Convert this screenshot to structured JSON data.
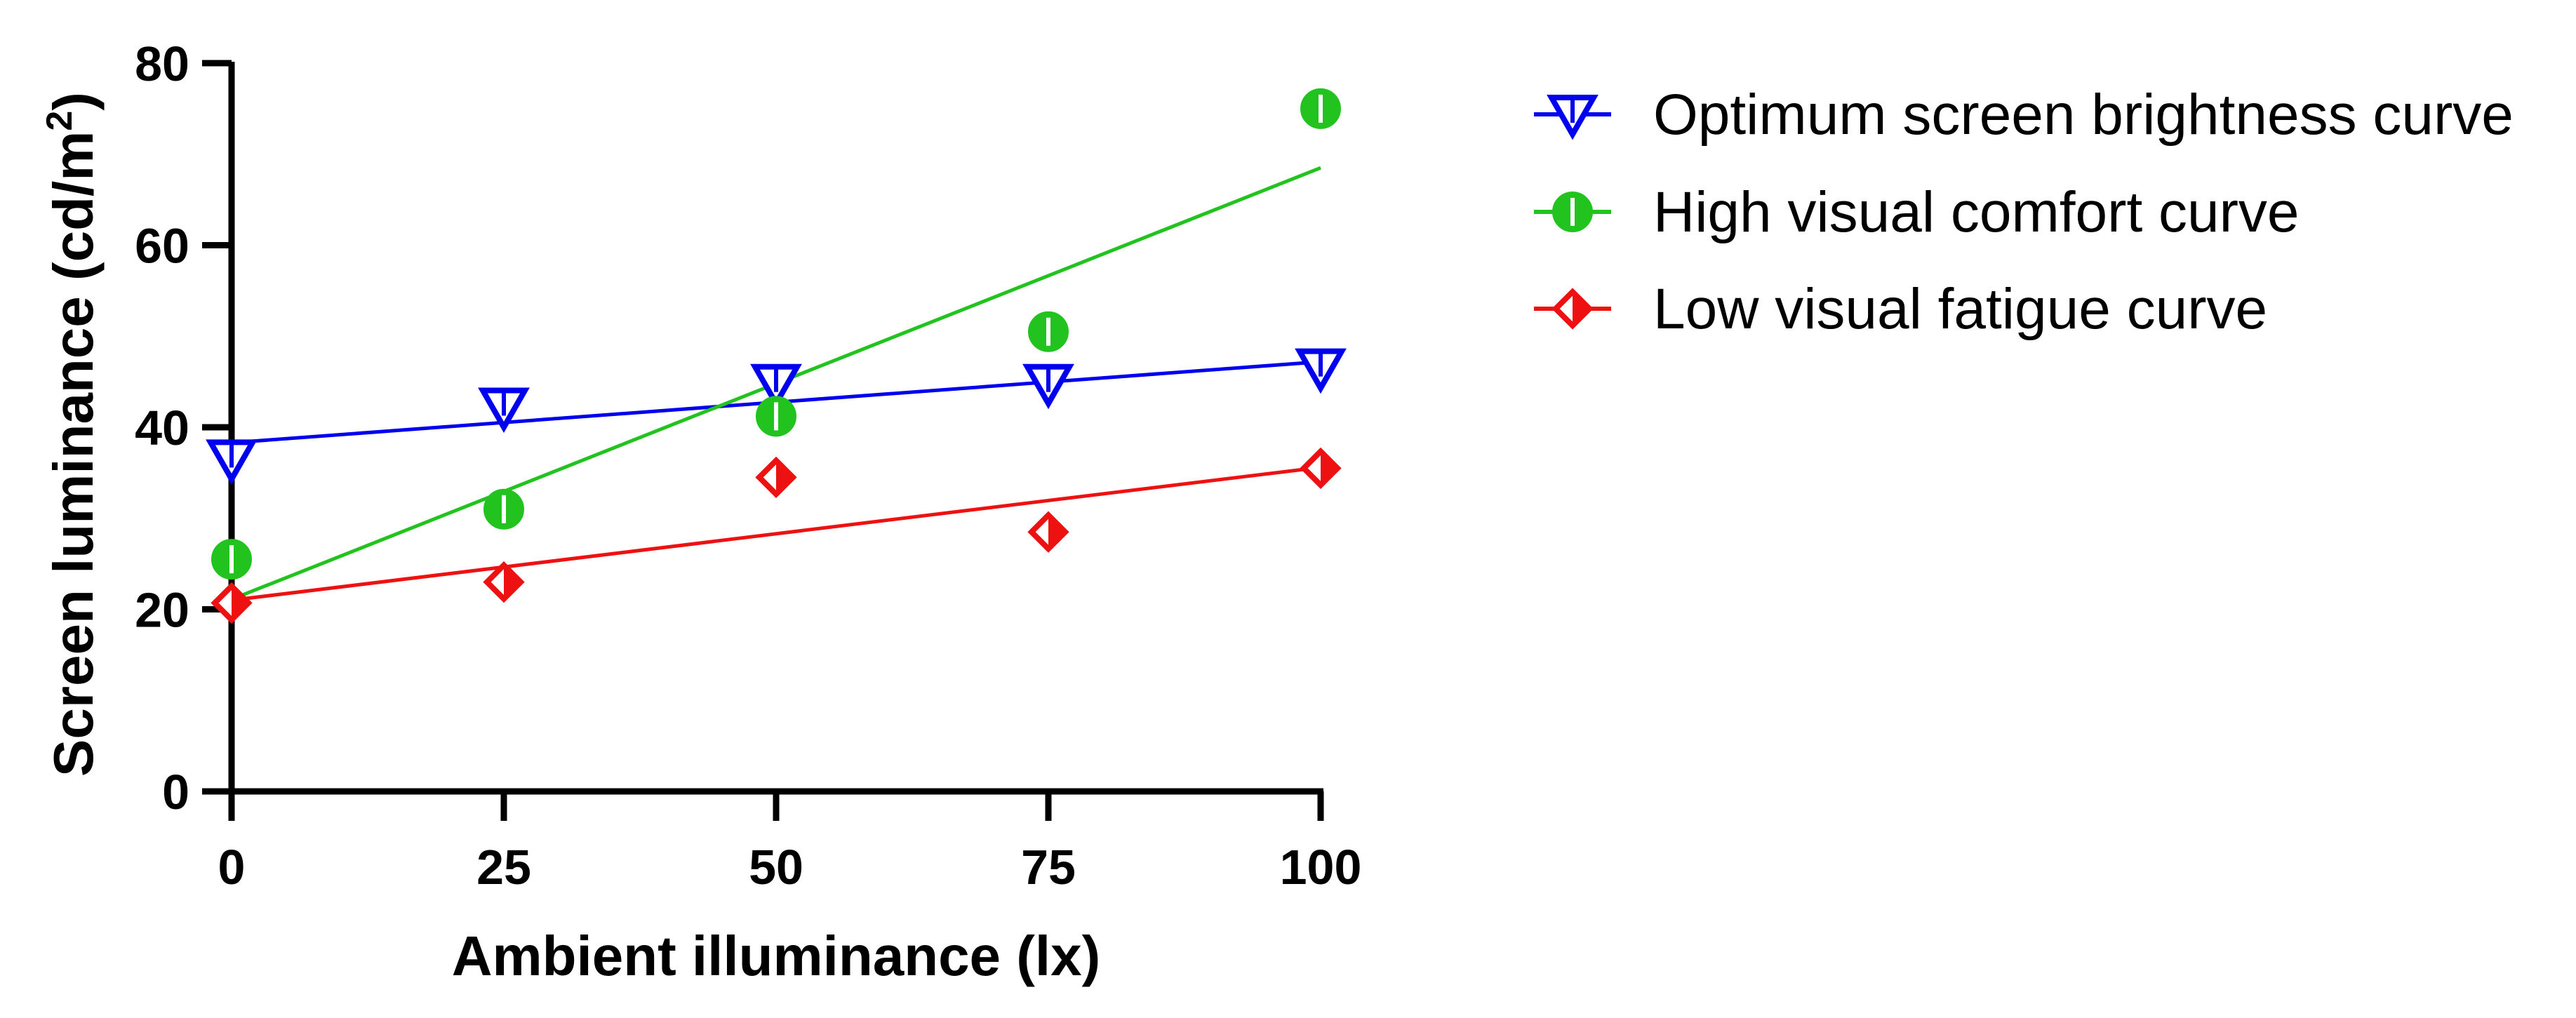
{
  "chart_data": {
    "type": "scatter",
    "title": "",
    "xlabel": "Ambient illuminance (lx)",
    "ylabel": "Screen luminance (cd/m",
    "ylabel_superscript": "2",
    "ylabel_suffix": ")",
    "xlim": [
      0,
      100
    ],
    "ylim": [
      0,
      80
    ],
    "xticks": [
      0,
      25,
      50,
      75,
      100
    ],
    "yticks": [
      0,
      20,
      40,
      60,
      80
    ],
    "grid": false,
    "legend_position": "right",
    "series": [
      {
        "name": "Optimum screen brightness curve",
        "color": "#0000ee",
        "marker": "triangle-down",
        "x": [
          0,
          25,
          50,
          75,
          100
        ],
        "y": [
          36.5,
          42.2,
          44.8,
          44.8,
          46.5
        ],
        "fit": {
          "intercept": 38.3,
          "slope": 0.089
        }
      },
      {
        "name": "High visual comfort curve",
        "color": "#22c31f",
        "marker": "circle-half",
        "x": [
          0,
          25,
          50,
          75,
          100
        ],
        "y": [
          25.5,
          31,
          41.2,
          50.5,
          75
        ],
        "fit": {
          "intercept": 21.1,
          "slope": 0.474
        }
      },
      {
        "name": "Low visual fatigue curve",
        "color": "#ee1111",
        "marker": "diamond-half",
        "x": [
          0,
          25,
          50,
          75,
          100
        ],
        "y": [
          20.7,
          23,
          34.5,
          28.5,
          35.5
        ],
        "fit": {
          "intercept": 21.0,
          "slope": 0.146
        }
      }
    ]
  }
}
